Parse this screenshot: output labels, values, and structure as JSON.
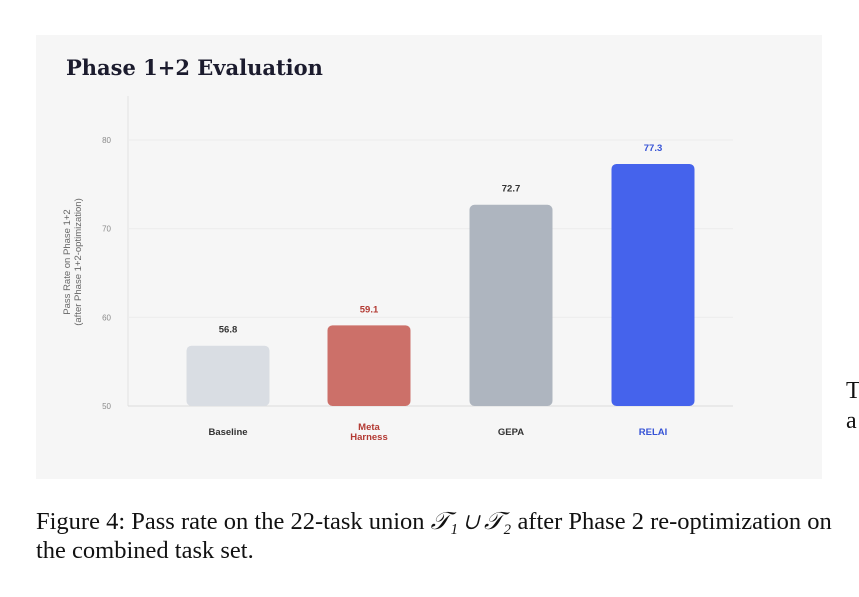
{
  "chart_data": {
    "type": "bar",
    "title": "Phase 1+2 Evaluation",
    "ylabel": "Pass Rate on Phase 1+2\n(after Phase 1+2-optimization)",
    "xlabel": "",
    "ylim": [
      50,
      80
    ],
    "yticks": [
      50,
      60,
      70,
      80
    ],
    "grid": true,
    "categories": [
      "Baseline",
      "Meta\nHarness",
      "GEPA",
      "RELAI"
    ],
    "values": [
      56.8,
      59.1,
      72.7,
      77.3
    ],
    "value_labels": [
      "56.8",
      "59.1",
      "72.7",
      "77.3"
    ],
    "colors": [
      "#d9dde3",
      "#cc7069",
      "#aeb5bf",
      "#4563ec"
    ],
    "label_colors": [
      "#333333",
      "#b33a33",
      "#333333",
      "#3653d6"
    ]
  },
  "caption": {
    "prefix": "Figure 4: Pass rate on the 22-task union ",
    "math": "𝒯₁ ∪ 𝒯₂",
    "suffix": " after Phase 2 re-optimization on the combined task set."
  },
  "edge_text": [
    "T",
    "a"
  ]
}
